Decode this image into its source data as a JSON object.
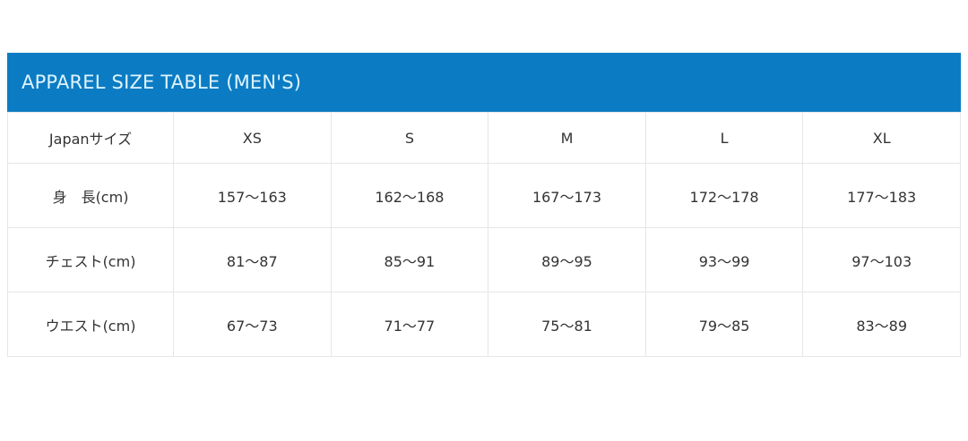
{
  "title": "APPAREL SIZE TABLE (MEN'S)",
  "header": [
    "Japanサイズ",
    "XS",
    "S",
    "M",
    "L",
    "XL"
  ],
  "rows": [
    [
      "身　長(cm)",
      "157〜163",
      "162〜168",
      "167〜173",
      "172〜178",
      "177〜183"
    ],
    [
      "チェスト(cm)",
      "81〜87",
      "85〜91",
      "89〜95",
      "93〜99",
      "97〜103"
    ],
    [
      "ウエスト(cm)",
      "67〜73",
      "71〜77",
      "75〜81",
      "79〜85",
      "83〜89"
    ]
  ],
  "colors": {
    "banner": "#0b7cc3"
  }
}
